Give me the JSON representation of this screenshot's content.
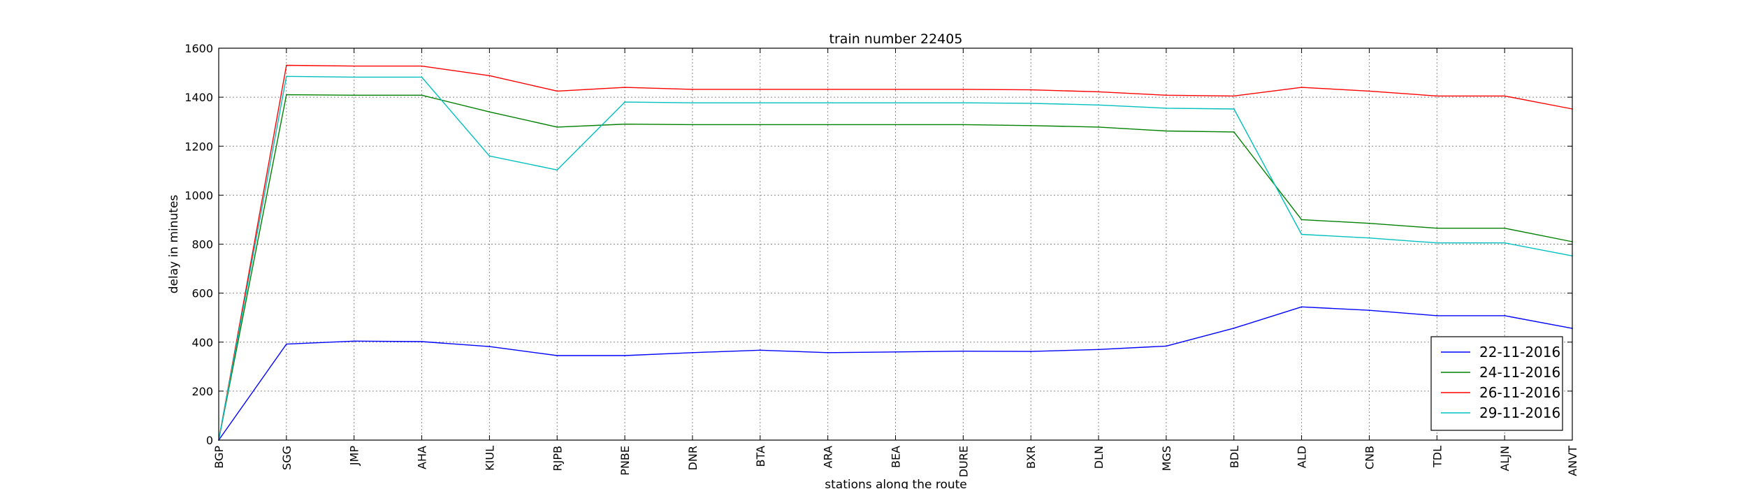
{
  "chart_data": {
    "type": "line",
    "title": "train number 22405",
    "xlabel": "stations along the route",
    "ylabel": "delay in minutes",
    "ylim": [
      0,
      1600
    ],
    "yticks": [
      0,
      200,
      400,
      600,
      800,
      1000,
      1200,
      1400,
      1600
    ],
    "grid": true,
    "legend_position": "bottom-right",
    "categories": [
      "BGP",
      "SGG",
      "JMP",
      "AHA",
      "KIUL",
      "RJPB",
      "PNBE",
      "DNR",
      "BTA",
      "ARA",
      "BEA",
      "DURE",
      "BXR",
      "DLN",
      "MGS",
      "BDL",
      "ALD",
      "CNB",
      "TDL",
      "ALJN",
      "ANVT"
    ],
    "series": [
      {
        "name": "22-11-2016",
        "color": "#0000ff",
        "values": [
          0,
          392,
          404,
          402,
          382,
          345,
          345,
          357,
          367,
          357,
          360,
          363,
          362,
          370,
          384,
          457,
          544,
          530,
          508,
          508,
          456
        ]
      },
      {
        "name": "24-11-2016",
        "color": "#008000",
        "values": [
          0,
          1410,
          1408,
          1408,
          1340,
          1278,
          1290,
          1288,
          1288,
          1288,
          1288,
          1288,
          1284,
          1278,
          1262,
          1258,
          900,
          885,
          865,
          865,
          810
        ]
      },
      {
        "name": "26-11-2016",
        "color": "#ff0000",
        "values": [
          0,
          1530,
          1527,
          1527,
          1488,
          1425,
          1440,
          1432,
          1432,
          1432,
          1432,
          1432,
          1430,
          1422,
          1408,
          1405,
          1440,
          1425,
          1405,
          1405,
          1352
        ]
      },
      {
        "name": "29-11-2016",
        "color": "#00bfbf",
        "values": [
          0,
          1485,
          1482,
          1482,
          1160,
          1103,
          1380,
          1377,
          1377,
          1377,
          1377,
          1377,
          1375,
          1368,
          1355,
          1352,
          840,
          825,
          805,
          805,
          752
        ]
      }
    ]
  }
}
